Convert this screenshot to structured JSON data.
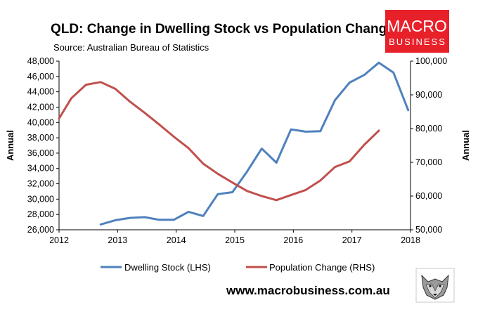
{
  "chart_data": {
    "type": "line",
    "title": "QLD: Change in Dwelling Stock vs Population Change",
    "subtitle": "Source: Australian Bureau of Statistics",
    "xlabel": "",
    "ylabel_left": "Annual",
    "ylabel_right": "Annual",
    "xlim": [
      2012,
      2018
    ],
    "ylim_left": [
      26000,
      48000
    ],
    "ylim_right": [
      50000,
      100000
    ],
    "x_ticks": [
      "2012",
      "2013",
      "2014",
      "2015",
      "2016",
      "2017",
      "2018"
    ],
    "y_ticks_left": [
      "26,000",
      "28,000",
      "30,000",
      "32,000",
      "34,000",
      "36,000",
      "38,000",
      "40,000",
      "42,000",
      "44,000",
      "46,000",
      "48,000"
    ],
    "y_ticks_right": [
      "50,000",
      "60,000",
      "70,000",
      "80,000",
      "90,000",
      "100,000"
    ],
    "grid": false,
    "legend_position": "bottom",
    "series": [
      {
        "name": "Dwelling Stock (LHS)",
        "axis": "left",
        "color": "#4f81bd",
        "x": [
          2012.71,
          2012.96,
          2013.21,
          2013.46,
          2013.71,
          2013.96,
          2014.21,
          2014.46,
          2014.71,
          2014.96,
          2015.21,
          2015.46,
          2015.71,
          2015.96,
          2016.21,
          2016.46,
          2016.71,
          2016.96,
          2017.21,
          2017.46,
          2017.71,
          2017.96
        ],
        "values": [
          26700,
          27250,
          27550,
          27650,
          27300,
          27300,
          28350,
          27800,
          30650,
          30900,
          33600,
          36600,
          34750,
          39100,
          38800,
          38850,
          42900,
          45200,
          46200,
          47800,
          46500,
          41600
        ]
      },
      {
        "name": "Population Change (RHS)",
        "axis": "right",
        "color": "#c0504d",
        "x": [
          2012.0,
          2012.21,
          2012.46,
          2012.71,
          2012.96,
          2013.21,
          2013.46,
          2013.71,
          2013.96,
          2014.21,
          2014.46,
          2014.71,
          2014.96,
          2015.21,
          2015.46,
          2015.71,
          2015.96,
          2016.21,
          2016.46,
          2016.71,
          2016.96,
          2017.21,
          2017.46
        ],
        "values": [
          83000,
          89000,
          93000,
          93800,
          91800,
          88000,
          84700,
          81200,
          77600,
          74200,
          69600,
          66600,
          64000,
          61500,
          60000,
          58800,
          60300,
          61800,
          64600,
          68600,
          70300,
          75200,
          79400
        ]
      }
    ]
  },
  "branding": {
    "logo_top": "MACRO",
    "logo_bottom": "BUSINESS",
    "logo_color": "#e8202a",
    "website": "www.macrobusiness.com.au",
    "mascot": "wolf-icon"
  }
}
